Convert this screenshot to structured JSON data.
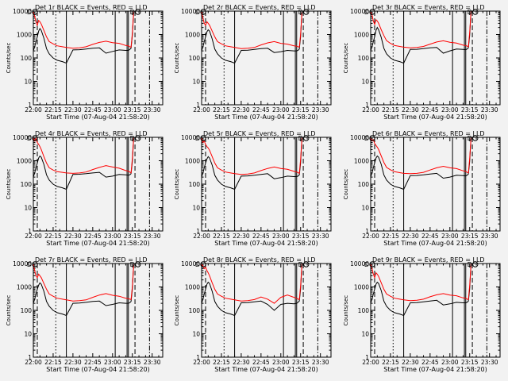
{
  "figure": {
    "background": "#f2f2f2"
  },
  "chart_data": {
    "type": "line",
    "grid": false,
    "yscale": "log",
    "ylim": [
      1,
      10000
    ],
    "xlim": [
      "22:00",
      "23:38"
    ],
    "xticks": [
      "22:00",
      "22:15",
      "22:30",
      "22:45",
      "23:00",
      "23:15",
      "23:30"
    ],
    "yticks": [
      "1",
      "10",
      "100",
      "1000",
      "10000"
    ],
    "xlabel": "Start Time (07-Aug-04 21:58:20)",
    "ylabel": "Counts/sec",
    "colors": {
      "events": "#000000",
      "lld": "#ff0000"
    },
    "vertical_lines": [
      {
        "time": "22:03",
        "style": "dashed"
      },
      {
        "time": "22:17",
        "style": "dotted"
      },
      {
        "time": "22:25",
        "style": "solid"
      },
      {
        "time": "23:02",
        "style": "solid"
      },
      {
        "time": "23:11",
        "style": "solid"
      },
      {
        "time": "23:12",
        "style": "solid"
      },
      {
        "time": "23:17",
        "style": "dashed"
      },
      {
        "time": "23:28",
        "style": "dash-dot"
      }
    ],
    "markers": [
      {
        "time": "22:00",
        "value": 10000,
        "label": "D"
      },
      {
        "time": "23:18",
        "value": 10000,
        "label": "D"
      }
    ],
    "time_points": [
      "22:00",
      "22:01",
      "22:02",
      "22:03",
      "22:04",
      "22:05",
      "22:06",
      "22:08",
      "22:10",
      "22:12",
      "22:15",
      "22:18",
      "22:22",
      "22:25",
      "22:30",
      "22:35",
      "22:40",
      "22:45",
      "22:50",
      "22:55",
      "23:00",
      "23:05",
      "23:10",
      "23:12",
      "23:13",
      "23:14",
      "23:15",
      "23:16"
    ],
    "panels": [
      {
        "title": "Det 1r BLACK = Events, RED = LLD",
        "events": [
          200,
          300,
          500,
          800,
          1400,
          1800,
          1500,
          700,
          250,
          150,
          100,
          80,
          70,
          60,
          220,
          225,
          240,
          260,
          270,
          160,
          190,
          220,
          210,
          210,
          230,
          260,
          900,
          9000
        ],
        "lld": [
          9000,
          6000,
          3500,
          2500,
          4000,
          3500,
          2800,
          1500,
          800,
          500,
          400,
          330,
          300,
          280,
          260,
          270,
          300,
          380,
          460,
          520,
          450,
          420,
          340,
          330,
          300,
          290,
          1100,
          9500
        ]
      },
      {
        "title": "Det 2r BLACK = Events, RED = LLD",
        "events": [
          200,
          300,
          500,
          800,
          1300,
          1600,
          1400,
          650,
          240,
          150,
          100,
          80,
          70,
          60,
          210,
          215,
          230,
          250,
          260,
          170,
          185,
          210,
          200,
          200,
          210,
          240,
          800,
          9000
        ],
        "lld": [
          9000,
          5000,
          3000,
          2500,
          3500,
          3000,
          2500,
          1400,
          800,
          500,
          400,
          330,
          300,
          280,
          250,
          260,
          280,
          360,
          440,
          500,
          420,
          390,
          330,
          320,
          300,
          290,
          1000,
          9000
        ]
      },
      {
        "title": "Det 3r BLACK = Events, RED = LLD",
        "events": [
          200,
          300,
          500,
          800,
          1500,
          2000,
          1600,
          750,
          260,
          150,
          100,
          80,
          70,
          60,
          230,
          235,
          250,
          270,
          280,
          160,
          200,
          240,
          230,
          225,
          240,
          270,
          900,
          9500
        ],
        "lld": [
          9000,
          7000,
          3800,
          2700,
          4300,
          3800,
          3000,
          1600,
          900,
          550,
          420,
          340,
          310,
          290,
          270,
          280,
          310,
          390,
          480,
          540,
          470,
          430,
          350,
          340,
          320,
          300,
          1200,
          9800
        ]
      },
      {
        "title": "Det 4r BLACK = Events, RED = LLD",
        "events": [
          200,
          300,
          500,
          800,
          1300,
          1600,
          1400,
          700,
          250,
          150,
          100,
          80,
          70,
          60,
          260,
          265,
          280,
          300,
          320,
          200,
          220,
          260,
          250,
          240,
          250,
          280,
          900,
          9000
        ],
        "lld": [
          9000,
          7000,
          9000,
          6000,
          5000,
          4000,
          3000,
          1500,
          800,
          500,
          400,
          340,
          320,
          300,
          290,
          300,
          330,
          420,
          520,
          620,
          540,
          480,
          380,
          360,
          330,
          300,
          1200,
          9500
        ]
      },
      {
        "title": "Det 5r BLACK = Events, RED = LLD",
        "events": [
          200,
          300,
          500,
          800,
          1200,
          1500,
          1300,
          650,
          240,
          150,
          100,
          80,
          70,
          60,
          220,
          225,
          240,
          260,
          280,
          170,
          190,
          220,
          210,
          210,
          220,
          250,
          800,
          9000
        ],
        "lld": [
          9000,
          6000,
          7000,
          5000,
          4000,
          3500,
          2800,
          1500,
          800,
          500,
          400,
          330,
          300,
          280,
          260,
          270,
          300,
          380,
          470,
          540,
          470,
          430,
          350,
          330,
          310,
          290,
          1100,
          9500
        ]
      },
      {
        "title": "Det 6r BLACK = Events, RED = LLD",
        "events": [
          200,
          300,
          500,
          800,
          1300,
          1600,
          1400,
          700,
          250,
          150,
          100,
          80,
          70,
          60,
          230,
          235,
          250,
          270,
          290,
          180,
          200,
          240,
          230,
          225,
          240,
          270,
          900,
          9000
        ],
        "lld": [
          9000,
          7000,
          8000,
          5500,
          4500,
          3800,
          3000,
          1600,
          850,
          520,
          410,
          340,
          310,
          290,
          280,
          290,
          320,
          400,
          500,
          580,
          500,
          460,
          370,
          350,
          320,
          300,
          1200,
          9500
        ]
      },
      {
        "title": "Det 7r BLACK = Events, RED = LLD",
        "events": [
          200,
          300,
          500,
          800,
          1200,
          1500,
          1300,
          650,
          240,
          150,
          100,
          80,
          70,
          60,
          200,
          205,
          220,
          240,
          250,
          160,
          180,
          210,
          200,
          200,
          210,
          240,
          800,
          9000
        ],
        "lld": [
          9000,
          5000,
          3000,
          2500,
          3500,
          3000,
          2500,
          1400,
          800,
          500,
          400,
          330,
          300,
          280,
          250,
          260,
          280,
          360,
          450,
          520,
          440,
          400,
          330,
          320,
          300,
          290,
          1000,
          9000
        ]
      },
      {
        "title": "Det 8r BLACK = Events, RED = LLD",
        "events": [
          200,
          300,
          500,
          800,
          1300,
          1600,
          1400,
          650,
          240,
          150,
          100,
          80,
          70,
          60,
          210,
          215,
          230,
          250,
          180,
          100,
          180,
          200,
          190,
          200,
          220,
          250,
          800,
          9000
        ],
        "lld": [
          9000,
          8000,
          6000,
          7000,
          5000,
          4000,
          3000,
          1500,
          800,
          500,
          400,
          330,
          300,
          280,
          250,
          260,
          290,
          370,
          300,
          200,
          360,
          450,
          360,
          330,
          300,
          290,
          1100,
          9500
        ]
      },
      {
        "title": "Det 9r BLACK = Events, RED = LLD",
        "events": [
          200,
          300,
          500,
          800,
          1300,
          1600,
          1400,
          700,
          250,
          150,
          100,
          80,
          70,
          60,
          210,
          215,
          230,
          250,
          270,
          170,
          190,
          220,
          210,
          210,
          220,
          250,
          800,
          9000
        ],
        "lld": [
          9000,
          6000,
          3500,
          2500,
          4000,
          3500,
          2800,
          1500,
          800,
          500,
          400,
          330,
          300,
          280,
          260,
          270,
          300,
          380,
          460,
          520,
          450,
          420,
          340,
          330,
          300,
          290,
          1100,
          9500
        ]
      }
    ]
  }
}
